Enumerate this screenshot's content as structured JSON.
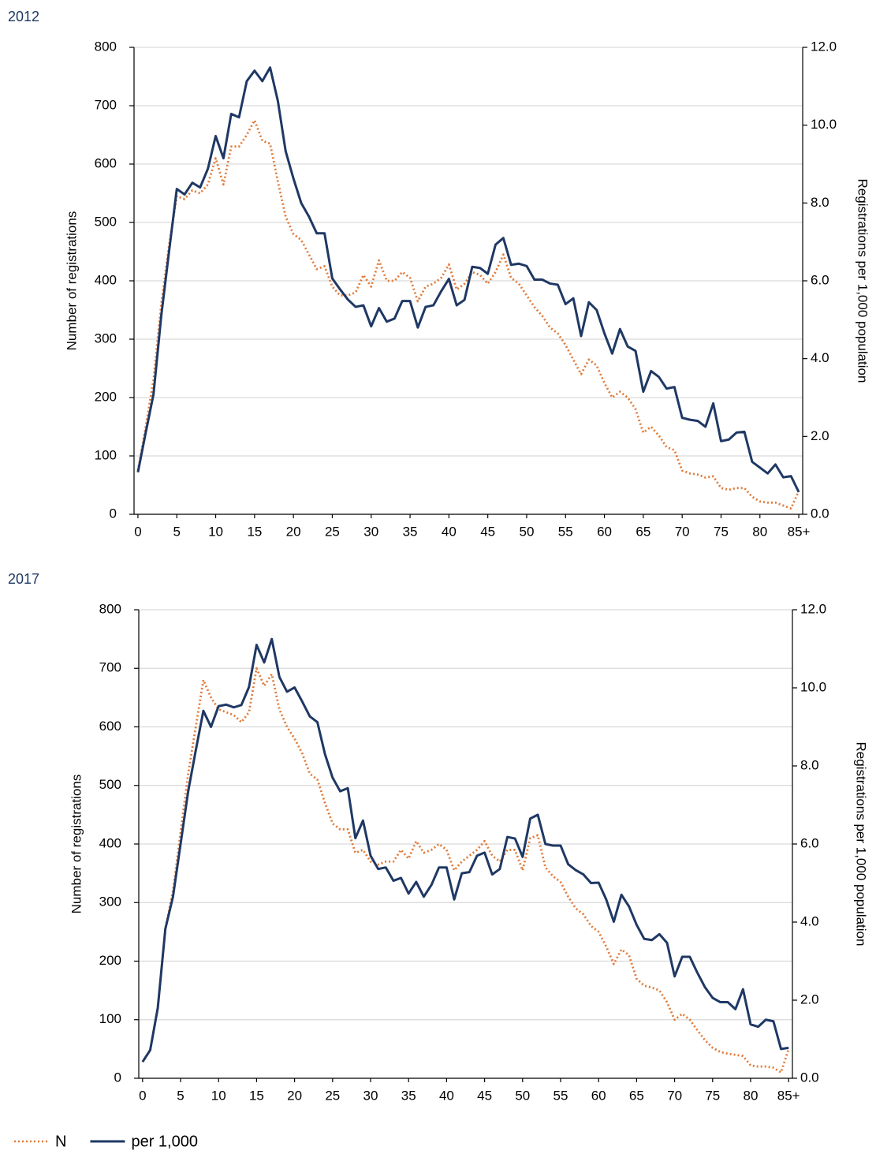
{
  "chart_data": [
    {
      "type": "line",
      "title": "2012",
      "ylabel": "Number of registrations",
      "y2label": "Registrations per 1,000 population",
      "x": [
        0,
        1,
        2,
        3,
        4,
        5,
        6,
        7,
        8,
        9,
        10,
        11,
        12,
        13,
        14,
        15,
        16,
        17,
        18,
        19,
        20,
        21,
        22,
        23,
        24,
        25,
        26,
        27,
        28,
        29,
        30,
        31,
        32,
        33,
        34,
        35,
        36,
        37,
        38,
        39,
        40,
        41,
        42,
        43,
        44,
        45,
        46,
        47,
        48,
        49,
        50,
        51,
        52,
        53,
        54,
        55,
        56,
        57,
        58,
        59,
        60,
        61,
        62,
        63,
        64,
        65,
        66,
        67,
        68,
        69,
        70,
        71,
        72,
        73,
        74,
        75,
        76,
        77,
        78,
        79,
        80,
        81,
        82,
        83,
        84,
        85
      ],
      "xlim": [
        -0.5,
        85.5
      ],
      "xticks": [
        0,
        5,
        10,
        15,
        20,
        25,
        30,
        35,
        40,
        45,
        50,
        55,
        60,
        65,
        70,
        75,
        80,
        {
          "value": 85,
          "label": "85+"
        }
      ],
      "ylim": [
        0,
        800
      ],
      "yticks": [
        0,
        100,
        200,
        300,
        400,
        500,
        600,
        700,
        800
      ],
      "y2lim": [
        0,
        12
      ],
      "y2ticks": [
        {
          "value": 0,
          "label": "0.0"
        },
        {
          "value": 2,
          "label": "2.0"
        },
        {
          "value": 4,
          "label": "4.0"
        },
        {
          "value": 6,
          "label": "6.0"
        },
        {
          "value": 8,
          "label": "8.0"
        },
        {
          "value": 10,
          "label": "10.0"
        },
        {
          "value": 12,
          "label": "12.0"
        }
      ],
      "grid": true,
      "series": [
        {
          "color": "#e07b39",
          "style": "dotted",
          "axis": "y",
          "values": [
            75,
            150,
            230,
            360,
            460,
            545,
            540,
            555,
            550,
            565,
            610,
            565,
            630,
            630,
            650,
            675,
            640,
            635,
            570,
            510,
            480,
            470,
            445,
            420,
            425,
            390,
            375,
            375,
            380,
            410,
            390,
            435,
            400,
            400,
            415,
            405,
            365,
            390,
            395,
            405,
            428,
            385,
            395,
            415,
            410,
            395,
            415,
            445,
            405,
            395,
            375,
            355,
            340,
            320,
            310,
            290,
            265,
            240,
            265,
            255,
            225,
            200,
            210,
            200,
            180,
            140,
            150,
            135,
            115,
            110,
            75,
            70,
            68,
            63,
            65,
            45,
            42,
            45,
            45,
            30,
            22,
            20,
            20,
            15,
            10,
            40
          ]
        },
        {
          "color": "#1f3864",
          "style": "solid",
          "axis": "y2",
          "values": [
            1.08,
            2.1,
            3.08,
            5.1,
            6.75,
            8.36,
            8.22,
            8.52,
            8.4,
            8.88,
            9.72,
            9.15,
            10.29,
            10.2,
            11.13,
            11.4,
            11.13,
            11.48,
            10.62,
            9.33,
            8.63,
            8.0,
            7.65,
            7.22,
            7.22,
            6.06,
            5.78,
            5.52,
            5.33,
            5.37,
            4.83,
            5.3,
            4.95,
            5.03,
            5.48,
            5.48,
            4.8,
            5.33,
            5.37,
            5.73,
            6.05,
            5.37,
            5.51,
            6.36,
            6.33,
            6.18,
            6.93,
            7.1,
            6.41,
            6.44,
            6.38,
            6.03,
            6.03,
            5.93,
            5.9,
            5.4,
            5.55,
            4.58,
            5.45,
            5.25,
            4.65,
            4.13,
            4.76,
            4.31,
            4.2,
            3.15,
            3.68,
            3.53,
            3.23,
            3.27,
            2.48,
            2.43,
            2.4,
            2.25,
            2.85,
            1.88,
            1.92,
            2.1,
            2.12,
            1.35,
            1.2,
            1.05,
            1.28,
            0.95,
            0.98,
            0.57
          ]
        }
      ]
    },
    {
      "type": "line",
      "title": "2017",
      "ylabel": "Number of registrations",
      "y2label": "Registrations per 1,000 population",
      "x": [
        0,
        1,
        2,
        3,
        4,
        5,
        6,
        7,
        8,
        9,
        10,
        11,
        12,
        13,
        14,
        15,
        16,
        17,
        18,
        19,
        20,
        21,
        22,
        23,
        24,
        25,
        26,
        27,
        28,
        29,
        30,
        31,
        32,
        33,
        34,
        35,
        36,
        37,
        38,
        39,
        40,
        41,
        42,
        43,
        44,
        45,
        46,
        47,
        48,
        49,
        50,
        51,
        52,
        53,
        54,
        55,
        56,
        57,
        58,
        59,
        60,
        61,
        62,
        63,
        64,
        65,
        66,
        67,
        68,
        69,
        70,
        71,
        72,
        73,
        74,
        75,
        76,
        77,
        78,
        79,
        80,
        81,
        82,
        83,
        84,
        85
      ],
      "xlim": [
        -0.5,
        85.5
      ],
      "xticks": [
        0,
        5,
        10,
        15,
        20,
        25,
        30,
        35,
        40,
        45,
        50,
        55,
        60,
        65,
        70,
        75,
        80,
        {
          "value": 85,
          "label": "85+"
        }
      ],
      "ylim": [
        0,
        800
      ],
      "yticks": [
        0,
        100,
        200,
        300,
        400,
        500,
        600,
        700,
        800
      ],
      "y2lim": [
        0,
        12
      ],
      "y2ticks": [
        {
          "value": 0,
          "label": "0.0"
        },
        {
          "value": 2,
          "label": "2.0"
        },
        {
          "value": 4,
          "label": "4.0"
        },
        {
          "value": 6,
          "label": "6.0"
        },
        {
          "value": 8,
          "label": "8.0"
        },
        {
          "value": 10,
          "label": "10.0"
        },
        {
          "value": 12,
          "label": "12.0"
        }
      ],
      "grid": true,
      "series": [
        {
          "name": "N",
          "color": "#e07b39",
          "style": "dotted",
          "axis": "y",
          "values": [
            28,
            48,
            120,
            255,
            320,
            420,
            520,
            600,
            680,
            650,
            630,
            625,
            620,
            608,
            625,
            700,
            670,
            690,
            630,
            600,
            580,
            555,
            520,
            510,
            470,
            435,
            425,
            425,
            385,
            390,
            370,
            365,
            370,
            370,
            390,
            375,
            405,
            385,
            390,
            400,
            390,
            355,
            370,
            380,
            390,
            405,
            380,
            370,
            390,
            390,
            355,
            410,
            415,
            360,
            345,
            335,
            310,
            290,
            280,
            260,
            250,
            225,
            195,
            220,
            210,
            170,
            158,
            155,
            150,
            130,
            100,
            110,
            100,
            82,
            65,
            52,
            45,
            42,
            40,
            38,
            22,
            20,
            20,
            18,
            10,
            50
          ]
        },
        {
          "name": "per 1,000",
          "color": "#1f3864",
          "style": "solid",
          "axis": "y2",
          "values": [
            0.42,
            0.72,
            1.8,
            3.83,
            4.65,
            6.0,
            7.35,
            8.4,
            9.41,
            9.0,
            9.53,
            9.57,
            9.5,
            9.56,
            10.02,
            11.1,
            10.65,
            11.25,
            10.28,
            9.9,
            10.01,
            9.65,
            9.27,
            9.12,
            8.3,
            7.7,
            7.35,
            7.43,
            6.15,
            6.6,
            5.7,
            5.36,
            5.4,
            5.06,
            5.13,
            4.73,
            5.03,
            4.65,
            4.95,
            5.4,
            5.4,
            4.58,
            5.25,
            5.28,
            5.7,
            5.78,
            5.22,
            5.36,
            6.18,
            6.14,
            5.67,
            6.65,
            6.75,
            6.0,
            5.96,
            5.96,
            5.48,
            5.33,
            5.22,
            5.0,
            5.01,
            4.58,
            4.01,
            4.7,
            4.4,
            3.93,
            3.57,
            3.54,
            3.69,
            3.47,
            2.61,
            3.11,
            3.11,
            2.7,
            2.33,
            2.06,
            1.95,
            1.95,
            1.77,
            2.28,
            1.38,
            1.32,
            1.5,
            1.46,
            0.75,
            0.78
          ]
        }
      ]
    }
  ]
}
